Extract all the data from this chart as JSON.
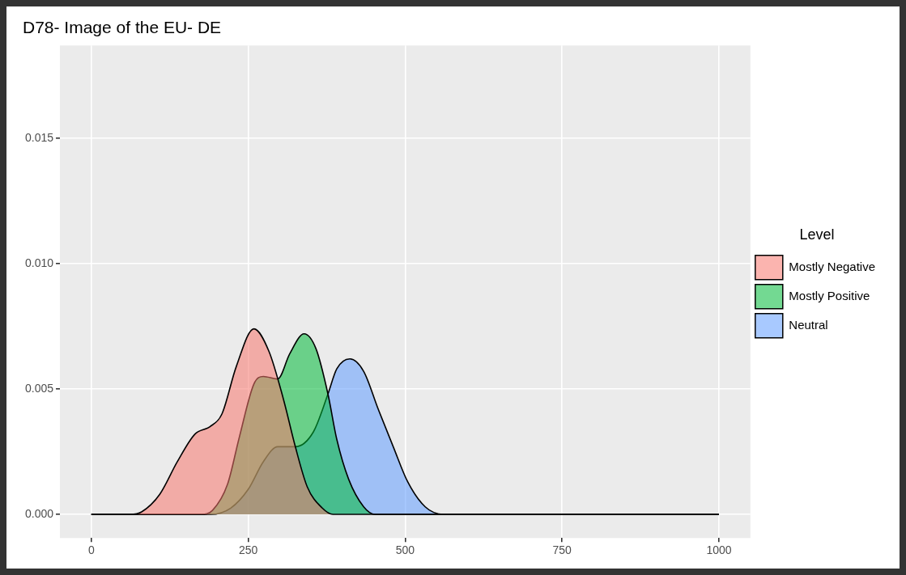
{
  "chart_data": {
    "type": "area",
    "title": "D78- Image of the EU- DE",
    "legend_title": "Level",
    "legend": "right",
    "grid": true,
    "marker": "none",
    "xlim": [
      -50,
      1050
    ],
    "xticks": [
      0,
      250,
      500,
      750,
      1000
    ],
    "ylim": [
      -0.00094,
      0.0187
    ],
    "yticks": [
      {
        "value": 0,
        "label": "0.000"
      },
      {
        "value": 0.005,
        "label": "0.005"
      },
      {
        "value": 0.01,
        "label": "0.010"
      },
      {
        "value": 0.015,
        "label": "0.015"
      }
    ],
    "series": [
      {
        "name": "Mostly Negative",
        "color": "#f8766d",
        "x": [
          0,
          62,
          80,
          109,
          137,
          165,
          189,
          208,
          231,
          259,
          283,
          306,
          325,
          344,
          368,
          385,
          1000
        ],
        "values": [
          0,
          0,
          0.0001,
          0.0008,
          0.0021,
          0.0032,
          0.0035,
          0.004,
          0.0059,
          0.0074,
          0.0065,
          0.0046,
          0.0027,
          0.0011,
          0.00025,
          0,
          0
        ]
      },
      {
        "name": "Mostly Positive",
        "color": "#00ba38",
        "x": [
          0,
          175,
          193,
          217,
          236,
          259,
          274,
          297,
          316,
          339,
          358,
          377,
          391,
          410,
          434,
          452,
          1000
        ],
        "values": [
          0,
          0,
          0.00016,
          0.0012,
          0.0031,
          0.0052,
          0.0055,
          0.0054,
          0.0064,
          0.0072,
          0.0066,
          0.0048,
          0.003,
          0.0014,
          0.0003,
          0,
          0
        ]
      },
      {
        "name": "Neutral",
        "color": "#619cff",
        "x": [
          0,
          190,
          222,
          250,
          274,
          297,
          325,
          354,
          377,
          391,
          412,
          434,
          457,
          481,
          504,
          532,
          561,
          1000
        ],
        "values": [
          0,
          0,
          0.00025,
          0.001,
          0.0021,
          0.0027,
          0.0027,
          0.0033,
          0.0048,
          0.0058,
          0.0062,
          0.0057,
          0.0042,
          0.0027,
          0.0013,
          0.0003,
          0,
          0
        ]
      }
    ]
  }
}
